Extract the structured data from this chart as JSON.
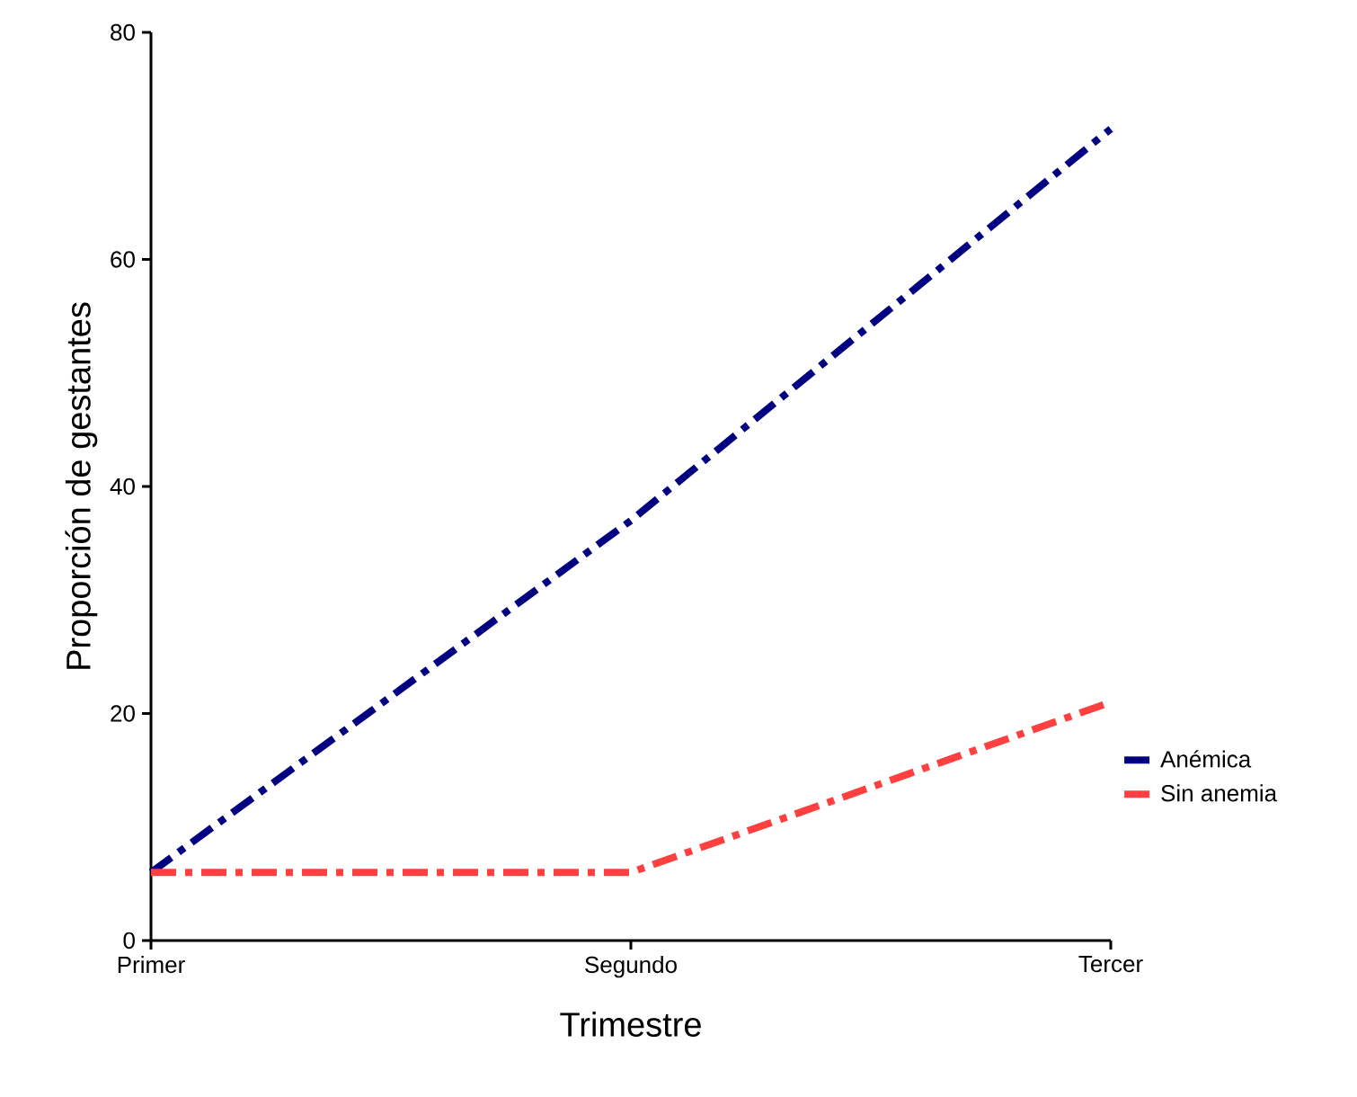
{
  "chart_data": {
    "type": "line",
    "xlabel": "Trimestre",
    "ylabel": "Proporción de gestantes",
    "categories": [
      "Primer",
      "Segundo",
      "Tercer"
    ],
    "series": [
      {
        "name": "Anémica",
        "color": "#000080",
        "values": [
          6,
          37,
          71.5
        ]
      },
      {
        "name": "Sin anemia",
        "color": "#ff4040",
        "values": [
          6,
          6,
          21
        ]
      }
    ],
    "ylim": [
      0,
      80
    ],
    "yticks": [
      0,
      20,
      40,
      60,
      80
    ],
    "legend": "right",
    "line_style": "dashdot",
    "marker": "none",
    "grid": false
  }
}
